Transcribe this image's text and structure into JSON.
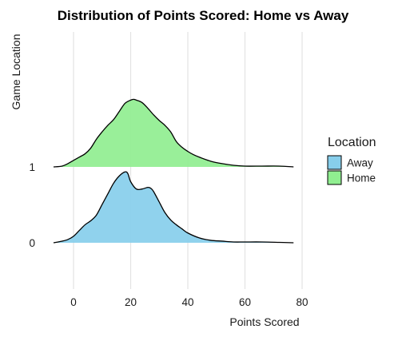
{
  "chart_data": {
    "type": "area",
    "subtype": "ridgeline-density",
    "title": "Distribution of Points Scored: Home vs Away",
    "xlabel": "Points Scored",
    "ylabel": "Game Location",
    "xlim": [
      -8,
      80
    ],
    "x_ticks": [
      0,
      20,
      40,
      60,
      80
    ],
    "y_categories": [
      "0",
      "1"
    ],
    "grid": "vertical-major",
    "legend": {
      "title": "Location",
      "placement": "right",
      "entries": [
        {
          "label": "Away",
          "color": "#87CEEB"
        },
        {
          "label": "Home",
          "color": "#90EE90"
        }
      ]
    },
    "series": [
      {
        "name": "Away",
        "category": "0",
        "color": "#87CEEB",
        "x": [
          -7,
          -4,
          -2,
          0,
          2,
          4,
          6,
          8,
          10,
          12,
          14,
          16,
          18,
          19,
          20,
          22,
          24,
          26,
          27,
          28,
          30,
          32,
          34,
          36,
          38,
          40,
          44,
          48,
          52,
          56,
          60,
          66,
          72,
          77
        ],
        "density": [
          0.0,
          0.002,
          0.004,
          0.008,
          0.015,
          0.022,
          0.027,
          0.034,
          0.047,
          0.06,
          0.073,
          0.082,
          0.087,
          0.085,
          0.075,
          0.066,
          0.066,
          0.068,
          0.067,
          0.063,
          0.05,
          0.037,
          0.028,
          0.022,
          0.017,
          0.012,
          0.006,
          0.003,
          0.002,
          0.001,
          0.001,
          0.001,
          0.0005,
          0.0
        ]
      },
      {
        "name": "Home",
        "category": "1",
        "color": "#90EE90",
        "x": [
          -7,
          -4,
          -2,
          0,
          2,
          4,
          6,
          8,
          10,
          12,
          14,
          16,
          18,
          20,
          21,
          22,
          24,
          26,
          28,
          30,
          32,
          34,
          36,
          38,
          40,
          42,
          44,
          48,
          52,
          56,
          60,
          66,
          72,
          77
        ],
        "density": [
          0.0,
          0.001,
          0.004,
          0.008,
          0.012,
          0.016,
          0.023,
          0.034,
          0.043,
          0.051,
          0.058,
          0.068,
          0.078,
          0.082,
          0.083,
          0.082,
          0.079,
          0.072,
          0.064,
          0.057,
          0.051,
          0.043,
          0.031,
          0.024,
          0.019,
          0.015,
          0.012,
          0.007,
          0.004,
          0.002,
          0.001,
          0.001,
          0.001,
          0.0
        ]
      }
    ]
  }
}
